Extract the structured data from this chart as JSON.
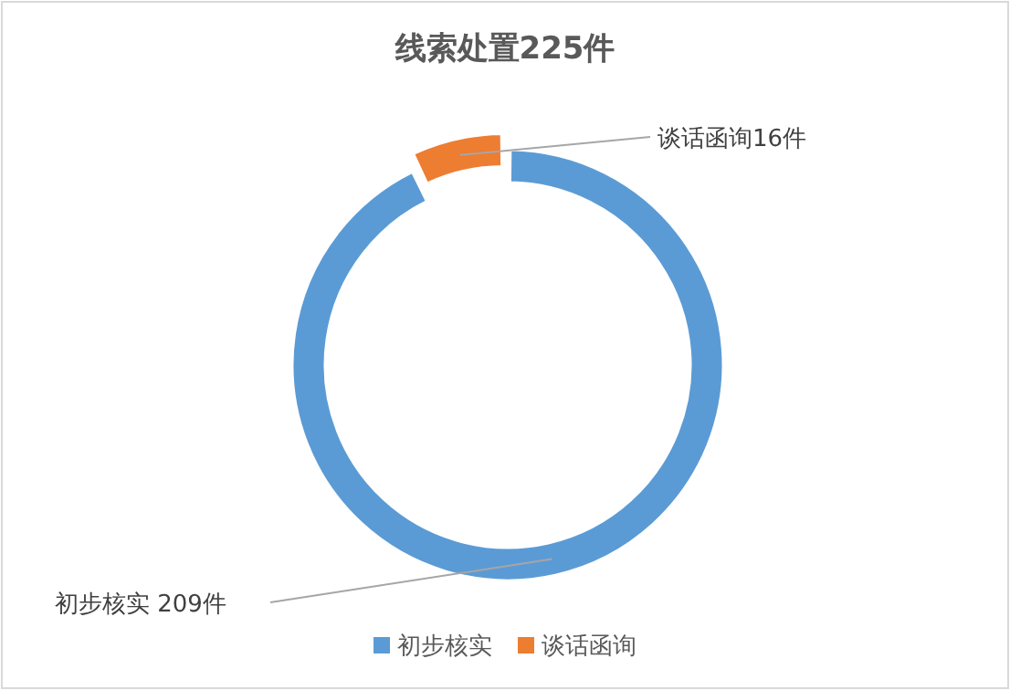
{
  "chart_data": {
    "type": "donut",
    "title": "线索处置225件",
    "categories": [
      "初步核实",
      "谈话函询"
    ],
    "values": [
      209,
      16
    ],
    "colors": [
      "#5b9bd5",
      "#ed7d31"
    ],
    "value_labels": [
      "初步核实 209件",
      "谈话函询16件"
    ],
    "legend": "bottom"
  }
}
